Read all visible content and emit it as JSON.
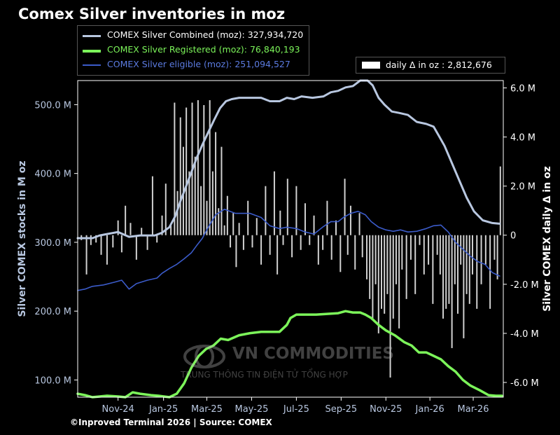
{
  "chart_data": {
    "type": "line+bar",
    "title": "Comex Silver inventories in moz",
    "ylabel_left": "Silver COMEX stocks in M oz",
    "ylabel_right": "Silver COMEX daily Δ in oz",
    "ylim_left": [
      75,
      535
    ],
    "ylim_right": [
      -6.6,
      6.3
    ],
    "left_ticks": [
      {
        "value": 100,
        "label": "100.0 M"
      },
      {
        "value": 200,
        "label": "200.0 M"
      },
      {
        "value": 300,
        "label": "300.0 M"
      },
      {
        "value": 400,
        "label": "400.0 M"
      },
      {
        "value": 500,
        "label": "500.0 M"
      }
    ],
    "right_ticks": [
      {
        "value": -6,
        "label": "-6.0 M"
      },
      {
        "value": -4,
        "label": "-4.0 M"
      },
      {
        "value": -2,
        "label": "-2.0 M"
      },
      {
        "value": 0,
        "label": "0"
      },
      {
        "value": 2,
        "label": "2.0 M"
      },
      {
        "value": 4,
        "label": "4.0 M"
      },
      {
        "value": 6,
        "label": "6.0 M"
      }
    ],
    "x_range": [
      0,
      580
    ],
    "x_ticks": [
      {
        "x": 55,
        "label": "Nov-24"
      },
      {
        "x": 117,
        "label": "Jan-25"
      },
      {
        "x": 176,
        "label": "Mar-25"
      },
      {
        "x": 237,
        "label": "May-25"
      },
      {
        "x": 298,
        "label": "Jul-25"
      },
      {
        "x": 359,
        "label": "Sep-25"
      },
      {
        "x": 420,
        "label": "Nov-25"
      },
      {
        "x": 480,
        "label": "Jan-26"
      },
      {
        "x": 539,
        "label": "Mar-26"
      }
    ],
    "series": [
      {
        "name": "COMEX Silver Combined (moz)",
        "latest": "327,934,720",
        "color": "#b8c7e0",
        "points": [
          [
            0,
            306
          ],
          [
            20,
            306
          ],
          [
            30,
            310
          ],
          [
            40,
            312
          ],
          [
            55,
            315
          ],
          [
            70,
            308
          ],
          [
            85,
            310
          ],
          [
            105,
            310
          ],
          [
            115,
            314
          ],
          [
            125,
            322
          ],
          [
            133,
            338
          ],
          [
            140,
            360
          ],
          [
            148,
            382
          ],
          [
            155,
            402
          ],
          [
            162,
            422
          ],
          [
            170,
            442
          ],
          [
            178,
            460
          ],
          [
            186,
            478
          ],
          [
            194,
            495
          ],
          [
            202,
            505
          ],
          [
            210,
            508
          ],
          [
            220,
            510
          ],
          [
            235,
            510
          ],
          [
            250,
            510
          ],
          [
            262,
            505
          ],
          [
            275,
            505
          ],
          [
            285,
            510
          ],
          [
            295,
            508
          ],
          [
            305,
            512
          ],
          [
            320,
            510
          ],
          [
            335,
            512
          ],
          [
            345,
            518
          ],
          [
            355,
            520
          ],
          [
            365,
            525
          ],
          [
            375,
            527
          ],
          [
            385,
            535
          ],
          [
            395,
            535
          ],
          [
            402,
            528
          ],
          [
            410,
            510
          ],
          [
            418,
            500
          ],
          [
            428,
            490
          ],
          [
            438,
            488
          ],
          [
            450,
            485
          ],
          [
            462,
            475
          ],
          [
            475,
            472
          ],
          [
            485,
            468
          ],
          [
            492,
            455
          ],
          [
            500,
            440
          ],
          [
            510,
            415
          ],
          [
            520,
            390
          ],
          [
            530,
            365
          ],
          [
            540,
            345
          ],
          [
            552,
            332
          ],
          [
            565,
            328
          ],
          [
            575,
            327
          ]
        ]
      },
      {
        "name": "COMEX Silver Registered (moz)",
        "latest": "76,840,193",
        "color": "#7cf45a",
        "points": [
          [
            0,
            80
          ],
          [
            10,
            78
          ],
          [
            20,
            75
          ],
          [
            30,
            76
          ],
          [
            40,
            77
          ],
          [
            55,
            76
          ],
          [
            65,
            75
          ],
          [
            75,
            82
          ],
          [
            85,
            80
          ],
          [
            100,
            78
          ],
          [
            110,
            77
          ],
          [
            125,
            75
          ],
          [
            135,
            80
          ],
          [
            145,
            95
          ],
          [
            155,
            118
          ],
          [
            165,
            135
          ],
          [
            175,
            145
          ],
          [
            185,
            150
          ],
          [
            195,
            160
          ],
          [
            205,
            158
          ],
          [
            220,
            165
          ],
          [
            235,
            168
          ],
          [
            250,
            170
          ],
          [
            265,
            170
          ],
          [
            275,
            170
          ],
          [
            285,
            180
          ],
          [
            290,
            190
          ],
          [
            298,
            195
          ],
          [
            310,
            195
          ],
          [
            325,
            195
          ],
          [
            340,
            196
          ],
          [
            355,
            197
          ],
          [
            365,
            200
          ],
          [
            375,
            198
          ],
          [
            385,
            198
          ],
          [
            392,
            195
          ],
          [
            400,
            190
          ],
          [
            410,
            180
          ],
          [
            420,
            172
          ],
          [
            432,
            165
          ],
          [
            445,
            155
          ],
          [
            455,
            150
          ],
          [
            465,
            140
          ],
          [
            475,
            140
          ],
          [
            485,
            135
          ],
          [
            495,
            130
          ],
          [
            505,
            120
          ],
          [
            515,
            112
          ],
          [
            525,
            100
          ],
          [
            535,
            92
          ],
          [
            548,
            85
          ],
          [
            560,
            78
          ],
          [
            570,
            77
          ],
          [
            578,
            77
          ]
        ]
      },
      {
        "name": "COMEX Silver eligible (moz)",
        "latest": "251,094,527",
        "color": "#3b5bc9",
        "points": [
          [
            0,
            230
          ],
          [
            10,
            232
          ],
          [
            20,
            236
          ],
          [
            35,
            238
          ],
          [
            50,
            242
          ],
          [
            60,
            245
          ],
          [
            70,
            232
          ],
          [
            80,
            240
          ],
          [
            95,
            245
          ],
          [
            108,
            248
          ],
          [
            115,
            255
          ],
          [
            125,
            262
          ],
          [
            135,
            268
          ],
          [
            145,
            276
          ],
          [
            155,
            285
          ],
          [
            162,
            295
          ],
          [
            170,
            306
          ],
          [
            178,
            322
          ],
          [
            188,
            340
          ],
          [
            200,
            348
          ],
          [
            215,
            342
          ],
          [
            235,
            342
          ],
          [
            250,
            336
          ],
          [
            262,
            324
          ],
          [
            275,
            320
          ],
          [
            285,
            322
          ],
          [
            298,
            320
          ],
          [
            310,
            315
          ],
          [
            322,
            312
          ],
          [
            335,
            323
          ],
          [
            345,
            330
          ],
          [
            355,
            330
          ],
          [
            362,
            336
          ],
          [
            372,
            342
          ],
          [
            382,
            345
          ],
          [
            392,
            340
          ],
          [
            400,
            330
          ],
          [
            410,
            322
          ],
          [
            420,
            318
          ],
          [
            430,
            316
          ],
          [
            440,
            318
          ],
          [
            450,
            315
          ],
          [
            462,
            316
          ],
          [
            475,
            320
          ],
          [
            485,
            324
          ],
          [
            495,
            325
          ],
          [
            505,
            315
          ],
          [
            515,
            300
          ],
          [
            525,
            290
          ],
          [
            535,
            280
          ],
          [
            545,
            272
          ],
          [
            555,
            268
          ],
          [
            565,
            256
          ],
          [
            575,
            251
          ]
        ]
      }
    ],
    "bars": {
      "name": "daily Δ in oz",
      "latest": "2,812,676",
      "color": "#e8e8e8",
      "points": [
        [
          5,
          -0.2
        ],
        [
          12,
          -1.6
        ],
        [
          18,
          -0.4
        ],
        [
          25,
          -0.3
        ],
        [
          32,
          -0.8
        ],
        [
          40,
          -1.2
        ],
        [
          48,
          -0.5
        ],
        [
          55,
          0.6
        ],
        [
          60,
          -0.7
        ],
        [
          65,
          1.2
        ],
        [
          72,
          0.5
        ],
        [
          80,
          -1.0
        ],
        [
          87,
          0.3
        ],
        [
          95,
          -0.6
        ],
        [
          102,
          2.4
        ],
        [
          108,
          -0.3
        ],
        [
          115,
          0.8
        ],
        [
          120,
          2.1
        ],
        [
          127,
          0.4
        ],
        [
          132,
          5.4
        ],
        [
          136,
          1.8
        ],
        [
          140,
          4.8
        ],
        [
          144,
          3.6
        ],
        [
          148,
          5.2
        ],
        [
          152,
          2.6
        ],
        [
          156,
          5.4
        ],
        [
          160,
          3.2
        ],
        [
          164,
          5.5
        ],
        [
          168,
          2.0
        ],
        [
          172,
          5.3
        ],
        [
          176,
          1.4
        ],
        [
          180,
          5.5
        ],
        [
          184,
          2.6
        ],
        [
          188,
          4.2
        ],
        [
          192,
          1.1
        ],
        [
          196,
          3.6
        ],
        [
          200,
          0.4
        ],
        [
          204,
          1.6
        ],
        [
          208,
          -0.5
        ],
        [
          212,
          0.9
        ],
        [
          216,
          -1.3
        ],
        [
          220,
          0.5
        ],
        [
          226,
          -0.6
        ],
        [
          232,
          1.4
        ],
        [
          238,
          -0.5
        ],
        [
          244,
          0.7
        ],
        [
          250,
          -1.2
        ],
        [
          256,
          2.0
        ],
        [
          262,
          -0.8
        ],
        [
          268,
          2.6
        ],
        [
          272,
          -1.6
        ],
        [
          276,
          1.0
        ],
        [
          280,
          -0.4
        ],
        [
          286,
          2.3
        ],
        [
          292,
          -0.9
        ],
        [
          298,
          2.0
        ],
        [
          304,
          -0.6
        ],
        [
          310,
          1.3
        ],
        [
          316,
          -0.4
        ],
        [
          322,
          0.8
        ],
        [
          328,
          -1.2
        ],
        [
          334,
          -0.6
        ],
        [
          340,
          1.4
        ],
        [
          346,
          -1.0
        ],
        [
          352,
          0.6
        ],
        [
          358,
          -1.5
        ],
        [
          364,
          2.3
        ],
        [
          368,
          -0.8
        ],
        [
          372,
          1.2
        ],
        [
          378,
          -1.4
        ],
        [
          384,
          0.9
        ],
        [
          388,
          -0.9
        ],
        [
          394,
          -1.8
        ],
        [
          398,
          -2.6
        ],
        [
          402,
          -3.4
        ],
        [
          406,
          -2.0
        ],
        [
          410,
          -4.0
        ],
        [
          414,
          -3.0
        ],
        [
          418,
          -3.2
        ],
        [
          422,
          -2.4
        ],
        [
          426,
          -5.8
        ],
        [
          430,
          -3.4
        ],
        [
          434,
          -2.0
        ],
        [
          438,
          -3.8
        ],
        [
          442,
          -1.4
        ],
        [
          448,
          -2.6
        ],
        [
          454,
          -1.0
        ],
        [
          460,
          -2.4
        ],
        [
          466,
          -0.4
        ],
        [
          472,
          -1.6
        ],
        [
          478,
          -1.2
        ],
        [
          484,
          -2.8
        ],
        [
          490,
          -0.8
        ],
        [
          494,
          -1.6
        ],
        [
          498,
          -3.4
        ],
        [
          502,
          -3.0
        ],
        [
          506,
          -2.8
        ],
        [
          510,
          -4.6
        ],
        [
          514,
          -2.0
        ],
        [
          518,
          -3.2
        ],
        [
          522,
          -1.2
        ],
        [
          526,
          -4.2
        ],
        [
          530,
          -2.4
        ],
        [
          534,
          -2.8
        ],
        [
          538,
          -1.6
        ],
        [
          544,
          -3.0
        ],
        [
          550,
          -2.0
        ],
        [
          556,
          -1.2
        ],
        [
          562,
          -3.0
        ],
        [
          568,
          -1.0
        ],
        [
          572,
          -1.8
        ],
        [
          576,
          2.8
        ]
      ]
    },
    "footer": "©Inproved Terminal 2026 | Source: COMEX",
    "watermark": {
      "name": "VN COMMODITIES",
      "subtitle": "TRUNG THÔNG TIN ĐIỆN TỬ TỔNG HỢP"
    }
  }
}
